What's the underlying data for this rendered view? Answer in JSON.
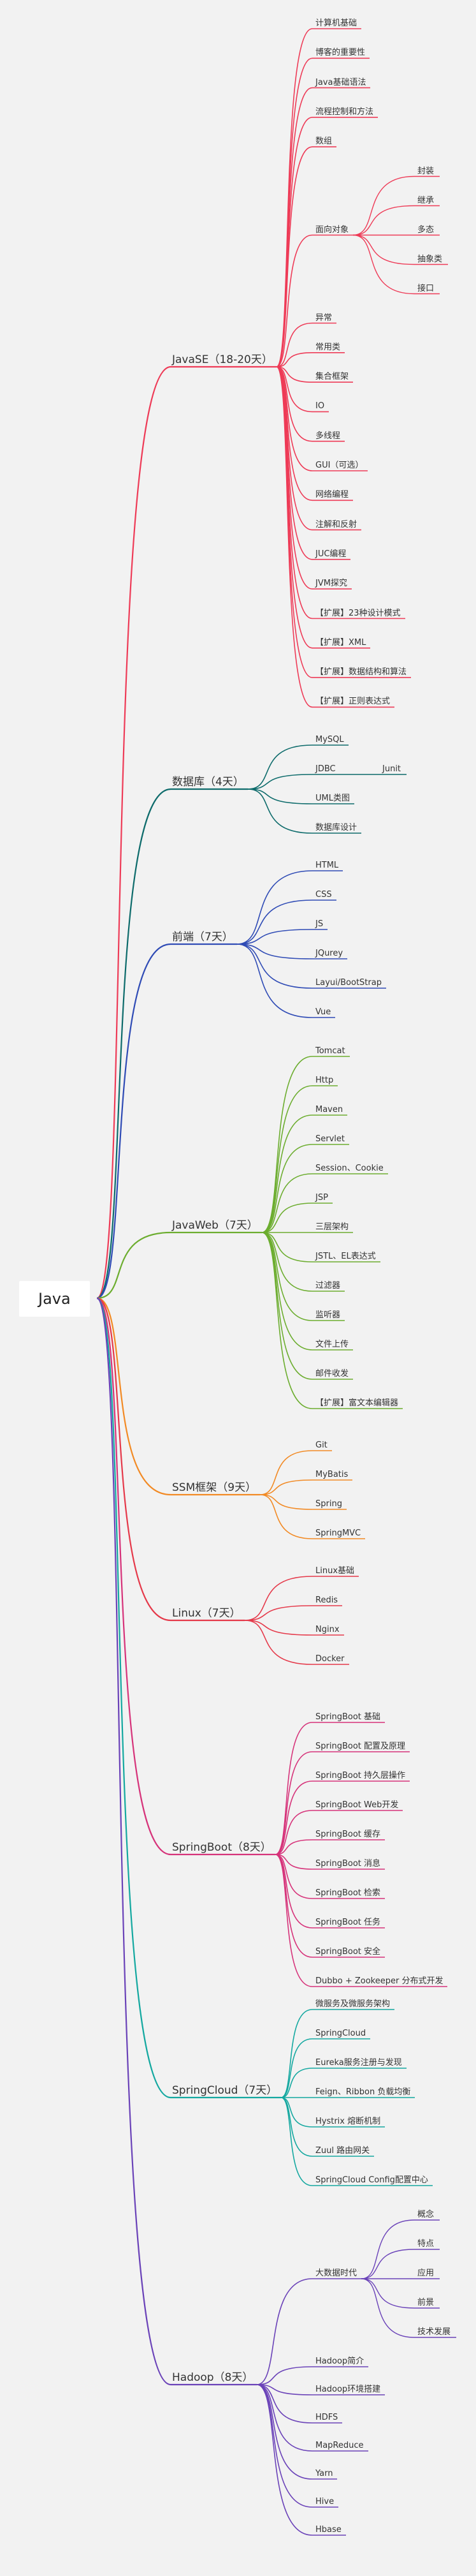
{
  "root": {
    "label": "Java"
  },
  "branches": [
    {
      "label": "JavaSE（18-20天）",
      "color": "#ee3b57",
      "children": [
        {
          "label": "计算机基础"
        },
        {
          "label": "博客的重要性"
        },
        {
          "label": "Java基础语法"
        },
        {
          "label": "流程控制和方法"
        },
        {
          "label": "数组"
        },
        {
          "label": "面向对象",
          "children": [
            {
              "label": "封装"
            },
            {
              "label": "继承"
            },
            {
              "label": "多态"
            },
            {
              "label": "抽象类"
            },
            {
              "label": "接口"
            }
          ]
        },
        {
          "label": "异常"
        },
        {
          "label": "常用类"
        },
        {
          "label": "集合框架"
        },
        {
          "label": "IO"
        },
        {
          "label": "多线程"
        },
        {
          "label": "GUI（可选）"
        },
        {
          "label": "网络编程"
        },
        {
          "label": "注解和反射"
        },
        {
          "label": "JUC编程"
        },
        {
          "label": "JVM探究"
        },
        {
          "label": "【扩展】23种设计模式"
        },
        {
          "label": "【扩展】XML"
        },
        {
          "label": "【扩展】数据结构和算法"
        },
        {
          "label": "【扩展】正则表达式"
        }
      ]
    },
    {
      "label": "数据库（4天）",
      "color": "#0d6b6b",
      "children": [
        {
          "label": "MySQL"
        },
        {
          "label": "JDBC",
          "children": [
            {
              "label": "Junit"
            }
          ]
        },
        {
          "label": "UML类图"
        },
        {
          "label": "数据库设计"
        }
      ]
    },
    {
      "label": "前端（7天）",
      "color": "#2f4bb5",
      "children": [
        {
          "label": "HTML"
        },
        {
          "label": "CSS"
        },
        {
          "label": "JS"
        },
        {
          "label": "JQurey"
        },
        {
          "label": "Layui/BootStrap"
        },
        {
          "label": "Vue"
        }
      ]
    },
    {
      "label": "JavaWeb（7天）",
      "color": "#6cad2f",
      "children": [
        {
          "label": "Tomcat"
        },
        {
          "label": "Http"
        },
        {
          "label": "Maven"
        },
        {
          "label": "Servlet"
        },
        {
          "label": "Session、Cookie"
        },
        {
          "label": "JSP"
        },
        {
          "label": "三层架构"
        },
        {
          "label": "JSTL、EL表达式"
        },
        {
          "label": "过滤器"
        },
        {
          "label": "监听器"
        },
        {
          "label": "文件上传"
        },
        {
          "label": "邮件收发"
        },
        {
          "label": "【扩展】富文本编辑器"
        }
      ]
    },
    {
      "label": "SSM框架（9天）",
      "color": "#f28a24",
      "children": [
        {
          "label": "Git"
        },
        {
          "label": "MyBatis"
        },
        {
          "label": "Spring"
        },
        {
          "label": "SpringMVC"
        }
      ]
    },
    {
      "label": "Linux（7天）",
      "color": "#e5394a",
      "children": [
        {
          "label": "Linux基础"
        },
        {
          "label": "Redis"
        },
        {
          "label": "Nginx"
        },
        {
          "label": "Docker"
        }
      ]
    },
    {
      "label": "SpringBoot（8天）",
      "color": "#d6337a",
      "children": [
        {
          "label": "SpringBoot 基础"
        },
        {
          "label": "SpringBoot 配置及原理"
        },
        {
          "label": "SpringBoot 持久层操作"
        },
        {
          "label": "SpringBoot Web开发"
        },
        {
          "label": "SpringBoot 缓存"
        },
        {
          "label": "SpringBoot 消息"
        },
        {
          "label": "SpringBoot 检索"
        },
        {
          "label": "SpringBoot 任务"
        },
        {
          "label": "SpringBoot 安全"
        },
        {
          "label": "Dubbo + Zookeeper 分布式开发"
        }
      ]
    },
    {
      "label": "SpringCloud（7天）",
      "color": "#14a8a0",
      "children": [
        {
          "label": "微服务及微服务架构"
        },
        {
          "label": "SpringCloud"
        },
        {
          "label": "Eureka服务注册与发现"
        },
        {
          "label": "Feign、Ribbon 负载均衡"
        },
        {
          "label": "Hystrix 熔断机制"
        },
        {
          "label": "Zuul 路由网关"
        },
        {
          "label": "SpringCloud Config配置中心"
        }
      ]
    },
    {
      "label": "Hadoop（8天）",
      "color": "#6a42b8",
      "children": [
        {
          "label": "大数据时代",
          "children": [
            {
              "label": "概念"
            },
            {
              "label": "特点"
            },
            {
              "label": "应用"
            },
            {
              "label": "前景"
            },
            {
              "label": "技术发展"
            }
          ]
        },
        {
          "label": "Hadoop简介"
        },
        {
          "label": "Hadoop环境搭建"
        },
        {
          "label": "HDFS"
        },
        {
          "label": "MapReduce"
        },
        {
          "label": "Yarn"
        },
        {
          "label": "Hive"
        },
        {
          "label": "Hbase"
        }
      ]
    }
  ]
}
